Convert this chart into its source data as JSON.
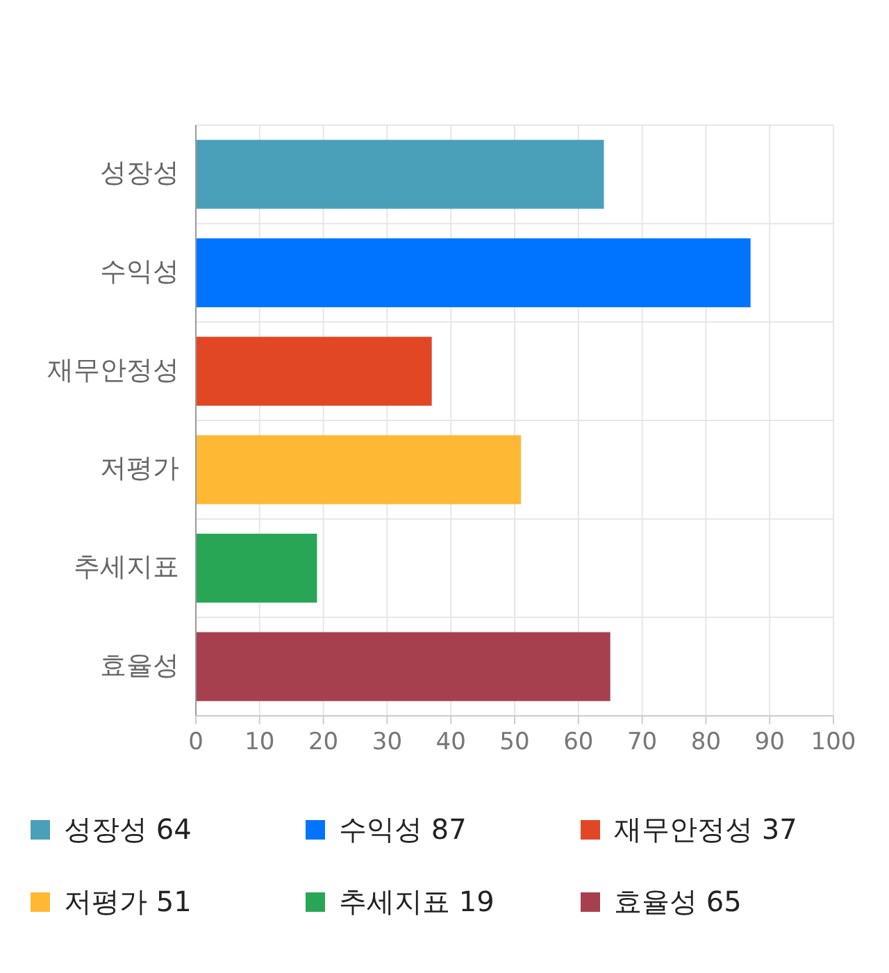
{
  "chart_data": {
    "type": "bar",
    "orientation": "horizontal",
    "stacked": true,
    "categories": [
      "성장성",
      "수익성",
      "재무안정성",
      "저평가",
      "추세지표",
      "효율성"
    ],
    "series": [
      {
        "name": "성장성 64",
        "color": "#4aa0b9",
        "values": [
          64,
          null,
          null,
          null,
          null,
          null
        ]
      },
      {
        "name": "수익성 87",
        "color": "#0074ff",
        "values": [
          null,
          87,
          null,
          null,
          null,
          null
        ]
      },
      {
        "name": "재무안정성 37",
        "color": "#e14625",
        "values": [
          null,
          null,
          37,
          null,
          null,
          null
        ]
      },
      {
        "name": "저평가 51",
        "color": "#ffb833",
        "values": [
          null,
          null,
          null,
          51,
          null,
          null
        ]
      },
      {
        "name": "추세지표 19",
        "color": "#29a655",
        "values": [
          null,
          null,
          null,
          null,
          19,
          null
        ]
      },
      {
        "name": "효율성 65",
        "color": "#a6404f",
        "values": [
          null,
          null,
          null,
          null,
          null,
          65
        ]
      }
    ],
    "xlim": [
      0,
      100
    ],
    "xticks": [
      0,
      10,
      20,
      30,
      40,
      50,
      60,
      70,
      80,
      90,
      100
    ],
    "grid": true,
    "legend": "bottom"
  }
}
